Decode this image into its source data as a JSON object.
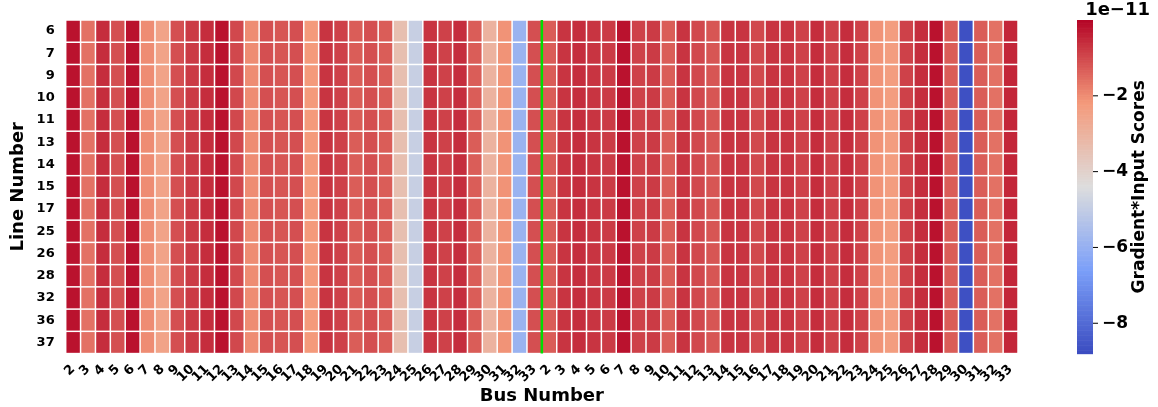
{
  "chart_data": {
    "type": "heatmap",
    "xlabel": "Bus Number",
    "ylabel": "Line Number",
    "clabel": "Gradient*Input Scores",
    "annotations": [
      "1e−11"
    ],
    "categories": [
      "2",
      "3",
      "4",
      "5",
      "6",
      "7",
      "8",
      "9",
      "10",
      "11",
      "12",
      "13",
      "14",
      "15",
      "16",
      "17",
      "18",
      "19",
      "20",
      "21",
      "22",
      "23",
      "24",
      "25",
      "26",
      "27",
      "28",
      "29",
      "30",
      "31",
      "32",
      "33",
      "2",
      "3",
      "4",
      "5",
      "6",
      "7",
      "8",
      "9",
      "10",
      "11",
      "12",
      "13",
      "14",
      "15",
      "16",
      "17",
      "18",
      "19",
      "20",
      "21",
      "22",
      "23",
      "24",
      "25",
      "26",
      "27",
      "28",
      "29",
      "30",
      "31",
      "32",
      "33"
    ],
    "y_categories": [
      "6",
      "7",
      "9",
      "10",
      "11",
      "13",
      "14",
      "15",
      "17",
      "25",
      "26",
      "28",
      "32",
      "36",
      "37"
    ],
    "clim": [
      -8.8,
      0
    ],
    "cticks": [
      {
        "value": -2,
        "label": "−2"
      },
      {
        "value": -4,
        "label": "−4"
      },
      {
        "value": -6,
        "label": "−6"
      },
      {
        "value": -8,
        "label": "−8"
      }
    ],
    "ref_lines": [
      {
        "axis": "x",
        "value": "33",
        "color": "#00dd00"
      }
    ],
    "cells": [
      [
        -0.2,
        -1.6,
        -0.6,
        -1.1,
        -0.2,
        -2.0,
        -2.5,
        -1.1,
        -0.8,
        -0.6,
        -0.2,
        -1.0,
        -2.0,
        -1.1,
        -1.2,
        -1.1,
        -2.2,
        -0.7,
        -0.9,
        -1.3,
        -1.1,
        -1.3,
        -3.4,
        -4.9,
        -0.7,
        -0.9,
        -0.6,
        -1.3,
        -3.0,
        -2.1,
        -5.9,
        -1.1,
        -1.3,
        -0.7,
        -0.6,
        -0.7,
        -0.8,
        -0.2,
        -0.9,
        -0.8,
        -1.3,
        -0.7,
        -1.0,
        -1.2,
        -0.7,
        -0.7,
        -1.0,
        -0.7,
        -0.7,
        -0.9,
        -0.6,
        -0.9,
        -0.6,
        -0.9,
        -2.1,
        -2.3,
        -0.9,
        -0.6,
        -0.2,
        -1.3,
        -8.7,
        -1.3,
        -1.6,
        -0.5
      ],
      [
        -0.2,
        -1.6,
        -0.6,
        -1.1,
        -0.2,
        -2.0,
        -2.5,
        -1.1,
        -0.8,
        -0.6,
        -0.2,
        -1.0,
        -2.0,
        -1.1,
        -1.2,
        -1.1,
        -2.2,
        -0.7,
        -0.9,
        -1.3,
        -1.1,
        -1.3,
        -3.4,
        -4.9,
        -0.7,
        -0.9,
        -0.6,
        -1.3,
        -3.0,
        -2.1,
        -5.9,
        -1.1,
        -1.3,
        -0.7,
        -0.6,
        -0.7,
        -0.8,
        -0.2,
        -0.9,
        -0.8,
        -1.3,
        -0.7,
        -1.0,
        -1.2,
        -0.7,
        -0.7,
        -1.0,
        -0.7,
        -0.7,
        -0.9,
        -0.6,
        -0.9,
        -0.6,
        -0.9,
        -2.1,
        -2.3,
        -0.9,
        -0.6,
        -0.2,
        -1.3,
        -8.7,
        -1.3,
        -1.6,
        -0.5
      ],
      [
        -0.2,
        -1.6,
        -0.6,
        -1.1,
        -0.2,
        -2.0,
        -2.5,
        -1.1,
        -0.8,
        -0.6,
        -0.2,
        -1.0,
        -2.0,
        -1.1,
        -1.2,
        -1.1,
        -2.2,
        -0.7,
        -0.9,
        -1.3,
        -1.1,
        -1.3,
        -3.4,
        -4.9,
        -0.7,
        -0.9,
        -0.6,
        -1.3,
        -3.0,
        -2.1,
        -5.9,
        -1.1,
        -1.3,
        -0.7,
        -0.6,
        -0.7,
        -0.8,
        -0.2,
        -0.9,
        -0.8,
        -1.3,
        -0.7,
        -1.0,
        -1.2,
        -0.7,
        -0.7,
        -1.0,
        -0.7,
        -0.7,
        -0.9,
        -0.6,
        -0.9,
        -0.6,
        -0.9,
        -2.1,
        -2.3,
        -0.9,
        -0.6,
        -0.2,
        -1.3,
        -8.7,
        -1.3,
        -1.6,
        -0.5
      ],
      [
        -0.2,
        -1.6,
        -0.6,
        -1.1,
        -0.2,
        -2.0,
        -2.5,
        -1.1,
        -0.8,
        -0.6,
        -0.2,
        -1.0,
        -2.0,
        -1.1,
        -1.2,
        -1.1,
        -2.2,
        -0.7,
        -0.9,
        -1.3,
        -1.1,
        -1.3,
        -3.4,
        -4.9,
        -0.7,
        -0.9,
        -0.6,
        -1.3,
        -3.0,
        -2.1,
        -5.9,
        -1.1,
        -1.3,
        -0.7,
        -0.6,
        -0.7,
        -0.8,
        -0.2,
        -0.9,
        -0.8,
        -1.3,
        -0.7,
        -1.0,
        -1.2,
        -0.7,
        -0.7,
        -1.0,
        -0.7,
        -0.7,
        -0.9,
        -0.6,
        -0.9,
        -0.6,
        -0.9,
        -2.1,
        -2.3,
        -0.9,
        -0.6,
        -0.2,
        -1.3,
        -8.7,
        -1.3,
        -1.6,
        -0.5
      ],
      [
        -0.2,
        -1.6,
        -0.6,
        -1.1,
        -0.2,
        -2.0,
        -2.5,
        -1.1,
        -0.8,
        -0.6,
        -0.2,
        -1.0,
        -2.0,
        -1.1,
        -1.2,
        -1.1,
        -2.2,
        -0.7,
        -0.9,
        -1.3,
        -1.1,
        -1.3,
        -3.4,
        -4.9,
        -0.7,
        -0.9,
        -0.6,
        -1.3,
        -3.0,
        -2.1,
        -5.9,
        -1.1,
        -1.3,
        -0.7,
        -0.6,
        -0.7,
        -0.8,
        -0.2,
        -0.9,
        -0.8,
        -1.3,
        -0.7,
        -1.0,
        -1.2,
        -0.7,
        -0.7,
        -1.0,
        -0.7,
        -0.7,
        -0.9,
        -0.6,
        -0.9,
        -0.6,
        -0.9,
        -2.1,
        -2.3,
        -0.9,
        -0.6,
        -0.2,
        -1.3,
        -8.7,
        -1.3,
        -1.6,
        -0.5
      ],
      [
        -0.2,
        -1.6,
        -0.6,
        -1.1,
        -0.2,
        -2.0,
        -2.5,
        -1.1,
        -0.8,
        -0.6,
        -0.2,
        -1.0,
        -2.0,
        -1.1,
        -1.2,
        -1.1,
        -2.2,
        -0.7,
        -0.9,
        -1.3,
        -1.1,
        -1.3,
        -3.4,
        -4.9,
        -0.7,
        -0.9,
        -0.6,
        -1.3,
        -3.0,
        -2.1,
        -5.9,
        -1.1,
        -1.3,
        -0.7,
        -0.6,
        -0.7,
        -0.8,
        -0.2,
        -0.9,
        -0.8,
        -1.3,
        -0.7,
        -1.0,
        -1.2,
        -0.7,
        -0.7,
        -1.0,
        -0.7,
        -0.7,
        -0.9,
        -0.6,
        -0.9,
        -0.6,
        -0.9,
        -2.1,
        -2.3,
        -0.9,
        -0.6,
        -0.2,
        -1.3,
        -8.7,
        -1.3,
        -1.6,
        -0.5
      ],
      [
        -0.2,
        -1.6,
        -0.6,
        -1.1,
        -0.2,
        -2.0,
        -2.5,
        -1.1,
        -0.8,
        -0.6,
        -0.2,
        -1.0,
        -2.0,
        -1.1,
        -1.2,
        -1.1,
        -2.2,
        -0.7,
        -0.9,
        -1.3,
        -1.1,
        -1.3,
        -3.4,
        -4.9,
        -0.7,
        -0.9,
        -0.6,
        -1.3,
        -3.0,
        -2.1,
        -5.9,
        -1.1,
        -1.3,
        -0.7,
        -0.6,
        -0.7,
        -0.8,
        -0.2,
        -0.9,
        -0.8,
        -1.3,
        -0.7,
        -1.0,
        -1.2,
        -0.7,
        -0.7,
        -1.0,
        -0.7,
        -0.7,
        -0.9,
        -0.6,
        -0.9,
        -0.6,
        -0.9,
        -2.1,
        -2.3,
        -0.9,
        -0.6,
        -0.2,
        -1.3,
        -8.7,
        -1.3,
        -1.6,
        -0.5
      ],
      [
        -0.2,
        -1.6,
        -0.6,
        -1.1,
        -0.2,
        -2.0,
        -2.5,
        -1.1,
        -0.8,
        -0.6,
        -0.2,
        -1.0,
        -2.0,
        -1.1,
        -1.2,
        -1.1,
        -2.2,
        -0.7,
        -0.9,
        -1.3,
        -1.1,
        -1.3,
        -3.4,
        -4.9,
        -0.7,
        -0.9,
        -0.6,
        -1.3,
        -3.0,
        -2.1,
        -5.9,
        -1.1,
        -1.3,
        -0.7,
        -0.6,
        -0.7,
        -0.8,
        -0.2,
        -0.9,
        -0.8,
        -1.3,
        -0.7,
        -1.0,
        -1.2,
        -0.7,
        -0.7,
        -1.0,
        -0.7,
        -0.7,
        -0.9,
        -0.6,
        -0.9,
        -0.6,
        -0.9,
        -2.1,
        -2.3,
        -0.9,
        -0.6,
        -0.2,
        -1.3,
        -8.7,
        -1.3,
        -1.6,
        -0.5
      ],
      [
        -0.2,
        -1.6,
        -0.6,
        -1.1,
        -0.2,
        -2.0,
        -2.5,
        -1.1,
        -0.8,
        -0.6,
        -0.2,
        -1.0,
        -2.0,
        -1.1,
        -1.2,
        -1.1,
        -2.2,
        -0.7,
        -0.9,
        -1.3,
        -1.1,
        -1.3,
        -3.4,
        -4.9,
        -0.7,
        -0.9,
        -0.6,
        -1.3,
        -3.0,
        -2.1,
        -5.9,
        -1.1,
        -1.3,
        -0.7,
        -0.6,
        -0.7,
        -0.8,
        -0.2,
        -0.9,
        -0.8,
        -1.3,
        -0.7,
        -1.0,
        -1.2,
        -0.7,
        -0.7,
        -1.0,
        -0.7,
        -0.7,
        -0.9,
        -0.6,
        -0.9,
        -0.6,
        -0.9,
        -2.1,
        -2.3,
        -0.9,
        -0.6,
        -0.2,
        -1.3,
        -8.7,
        -1.3,
        -1.6,
        -0.5
      ],
      [
        -0.2,
        -1.6,
        -0.6,
        -1.1,
        -0.2,
        -2.0,
        -2.5,
        -1.1,
        -0.8,
        -0.6,
        -0.2,
        -1.0,
        -2.0,
        -1.1,
        -1.2,
        -1.1,
        -2.2,
        -0.7,
        -0.9,
        -1.3,
        -1.1,
        -1.3,
        -3.4,
        -4.9,
        -0.7,
        -0.9,
        -0.6,
        -1.3,
        -3.0,
        -2.1,
        -5.9,
        -1.1,
        -1.3,
        -0.7,
        -0.6,
        -0.7,
        -0.8,
        -0.2,
        -0.9,
        -0.8,
        -1.3,
        -0.7,
        -1.0,
        -1.2,
        -0.7,
        -0.7,
        -1.0,
        -0.7,
        -0.7,
        -0.9,
        -0.6,
        -0.9,
        -0.6,
        -0.9,
        -2.1,
        -2.3,
        -0.9,
        -0.6,
        -0.2,
        -1.3,
        -8.7,
        -1.3,
        -1.6,
        -0.5
      ],
      [
        -0.2,
        -1.6,
        -0.6,
        -1.1,
        -0.2,
        -2.0,
        -2.5,
        -1.1,
        -0.8,
        -0.6,
        -0.2,
        -1.0,
        -2.0,
        -1.1,
        -1.2,
        -1.1,
        -2.2,
        -0.7,
        -0.9,
        -1.3,
        -1.1,
        -1.3,
        -3.4,
        -4.9,
        -0.7,
        -0.9,
        -0.6,
        -1.3,
        -3.0,
        -2.1,
        -5.9,
        -1.1,
        -1.3,
        -0.7,
        -0.6,
        -0.7,
        -0.8,
        -0.2,
        -0.9,
        -0.8,
        -1.3,
        -0.7,
        -1.0,
        -1.2,
        -0.7,
        -0.7,
        -1.0,
        -0.7,
        -0.7,
        -0.9,
        -0.6,
        -0.9,
        -0.6,
        -0.9,
        -2.1,
        -2.3,
        -0.9,
        -0.6,
        -0.2,
        -1.3,
        -8.7,
        -1.3,
        -1.6,
        -0.5
      ],
      [
        -0.2,
        -1.6,
        -0.6,
        -1.1,
        -0.2,
        -2.0,
        -2.5,
        -1.1,
        -0.8,
        -0.6,
        -0.2,
        -1.0,
        -2.0,
        -1.1,
        -1.2,
        -1.1,
        -2.2,
        -0.7,
        -0.9,
        -1.3,
        -1.1,
        -1.3,
        -3.4,
        -4.9,
        -0.7,
        -0.9,
        -0.6,
        -1.3,
        -3.0,
        -2.1,
        -5.9,
        -1.1,
        -1.3,
        -0.7,
        -0.6,
        -0.7,
        -0.8,
        -0.2,
        -0.9,
        -0.8,
        -1.3,
        -0.7,
        -1.0,
        -1.2,
        -0.7,
        -0.7,
        -1.0,
        -0.7,
        -0.7,
        -0.9,
        -0.6,
        -0.9,
        -0.6,
        -0.9,
        -2.1,
        -2.3,
        -0.9,
        -0.6,
        -0.2,
        -1.3,
        -8.7,
        -1.3,
        -1.6,
        -0.5
      ],
      [
        -0.2,
        -1.6,
        -0.6,
        -1.1,
        -0.2,
        -2.0,
        -2.5,
        -1.1,
        -0.8,
        -0.6,
        -0.2,
        -1.0,
        -2.0,
        -1.1,
        -1.2,
        -1.1,
        -2.2,
        -0.7,
        -0.9,
        -1.3,
        -1.1,
        -1.3,
        -3.4,
        -4.9,
        -0.7,
        -0.9,
        -0.6,
        -1.3,
        -3.0,
        -2.1,
        -5.9,
        -1.1,
        -1.3,
        -0.7,
        -0.6,
        -0.7,
        -0.8,
        -0.2,
        -0.9,
        -0.8,
        -1.3,
        -0.7,
        -1.0,
        -1.2,
        -0.7,
        -0.7,
        -1.0,
        -0.7,
        -0.7,
        -0.9,
        -0.6,
        -0.9,
        -0.6,
        -0.9,
        -2.1,
        -2.3,
        -0.9,
        -0.6,
        -0.2,
        -1.3,
        -8.7,
        -1.3,
        -1.6,
        -0.5
      ],
      [
        -0.2,
        -1.6,
        -0.6,
        -1.1,
        -0.2,
        -2.0,
        -2.5,
        -1.1,
        -0.8,
        -0.6,
        -0.2,
        -1.0,
        -2.0,
        -1.1,
        -1.2,
        -1.1,
        -2.2,
        -0.7,
        -0.9,
        -1.3,
        -1.1,
        -1.3,
        -3.4,
        -4.9,
        -0.7,
        -0.9,
        -0.6,
        -1.3,
        -3.0,
        -2.1,
        -5.9,
        -1.1,
        -1.3,
        -0.7,
        -0.6,
        -0.7,
        -0.8,
        -0.2,
        -0.9,
        -0.8,
        -1.3,
        -0.7,
        -1.0,
        -1.2,
        -0.7,
        -0.7,
        -1.0,
        -0.7,
        -0.7,
        -0.9,
        -0.6,
        -0.9,
        -0.6,
        -0.9,
        -2.1,
        -2.3,
        -0.9,
        -0.6,
        -0.2,
        -1.3,
        -8.7,
        -1.3,
        -1.6,
        -0.5
      ],
      [
        -0.2,
        -1.6,
        -0.6,
        -1.1,
        -0.2,
        -2.0,
        -2.5,
        -1.1,
        -0.8,
        -0.6,
        -0.2,
        -1.0,
        -2.0,
        -1.1,
        -1.2,
        -1.1,
        -2.2,
        -0.7,
        -0.9,
        -1.3,
        -1.1,
        -1.3,
        -3.4,
        -4.9,
        -0.7,
        -0.9,
        -0.6,
        -1.3,
        -3.0,
        -2.1,
        -5.9,
        -1.1,
        -1.3,
        -0.7,
        -0.6,
        -0.7,
        -0.8,
        -0.2,
        -0.9,
        -0.8,
        -1.3,
        -0.7,
        -1.0,
        -1.2,
        -0.7,
        -0.7,
        -1.0,
        -0.7,
        -0.7,
        -0.9,
        -0.6,
        -0.9,
        -0.6,
        -0.9,
        -2.1,
        -2.3,
        -0.9,
        -0.6,
        -0.2,
        -1.3,
        -8.7,
        -1.3,
        -1.6,
        -0.5
      ]
    ]
  }
}
